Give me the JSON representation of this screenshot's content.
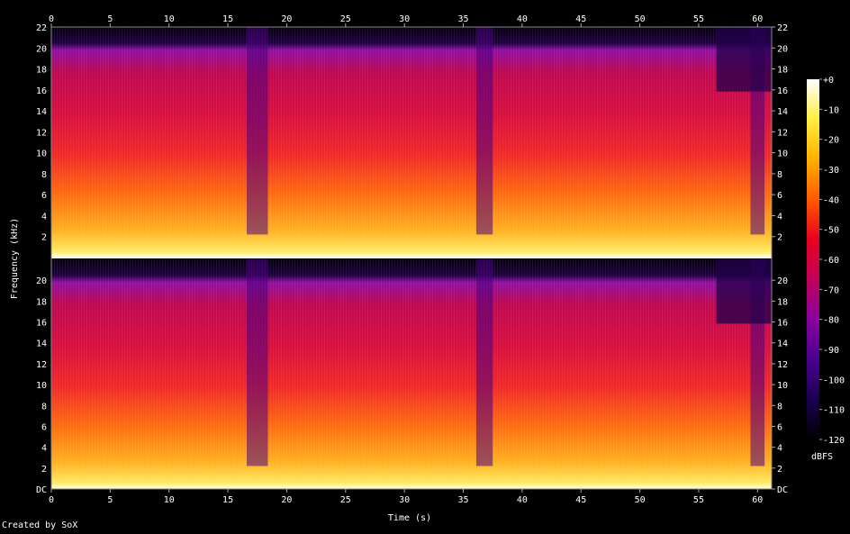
{
  "credit": "Created by SoX",
  "chart_data": {
    "type": "heatmap",
    "title": "",
    "xlabel": "Time (s)",
    "ylabel": "Frequency (kHz)",
    "xlim": [
      0,
      61.2
    ],
    "ylim": [
      0,
      22
    ],
    "x_ticks": [
      "0",
      "5",
      "10",
      "15",
      "20",
      "25",
      "30",
      "35",
      "40",
      "45",
      "50",
      "55",
      "60"
    ],
    "y_ticks_top": [
      "2",
      "4",
      "6",
      "8",
      "10",
      "12",
      "14",
      "16",
      "18",
      "20",
      "22"
    ],
    "y_ticks_bottom": [
      "DC",
      "2",
      "4",
      "6",
      "8",
      "10",
      "12",
      "14",
      "16",
      "18",
      "20"
    ],
    "channels": [
      "channel-1",
      "channel-2"
    ],
    "colorbar": {
      "label": "dBFS",
      "range": [
        -120,
        0
      ],
      "ticks": [
        "+0",
        "-10",
        "-20",
        "-30",
        "-40",
        "-50",
        "-60",
        "-70",
        "-80",
        "-90",
        "-100",
        "-110",
        "-120"
      ],
      "colors": [
        "#000000",
        "#1a0050",
        "#4a0090",
        "#8a00a0",
        "#c0005a",
        "#e80020",
        "#ff5a00",
        "#ffb000",
        "#ffee40",
        "#ffffff"
      ]
    }
  }
}
